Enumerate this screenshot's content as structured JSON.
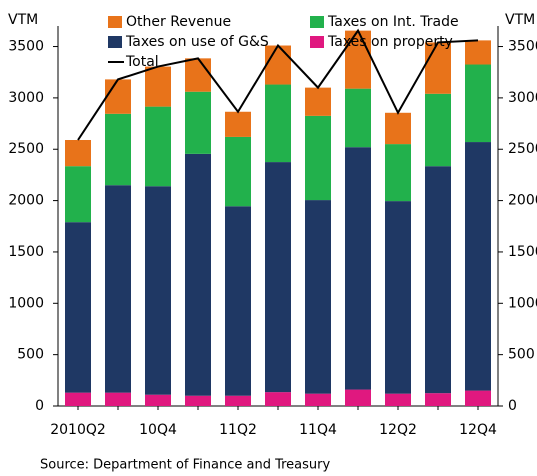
{
  "chart_data": {
    "type": "bar",
    "stacked": true,
    "y_label": "VTM",
    "y2_label": "VTM",
    "source": "Source: Department of Finance and Treasury",
    "categories": [
      "2010Q2",
      null,
      "10Q4",
      null,
      "11Q2",
      null,
      "11Q4",
      null,
      "12Q2",
      null,
      "12Q4"
    ],
    "series": [
      {
        "name": "Taxes on property",
        "color": "#e0187f",
        "values": [
          130,
          130,
          110,
          100,
          100,
          135,
          120,
          160,
          120,
          125,
          150
        ]
      },
      {
        "name": "Taxes on use of G&S",
        "color": "#1f3864",
        "values": [
          1660,
          2020,
          2030,
          2355,
          1845,
          2240,
          1885,
          2360,
          1875,
          2210,
          2420
        ]
      },
      {
        "name": "Taxes on Int. Trade",
        "color": "#22b14c",
        "values": [
          545,
          695,
          775,
          605,
          675,
          755,
          820,
          570,
          555,
          705,
          755
        ]
      },
      {
        "name": "Other Revenue",
        "color": "#e8731a",
        "values": [
          255,
          335,
          390,
          325,
          245,
          380,
          275,
          565,
          305,
          500,
          235
        ]
      },
      {
        "name": "Total",
        "type": "line",
        "color": "#000000",
        "values": [
          2590,
          3180,
          3305,
          3385,
          2865,
          3510,
          3100,
          3655,
          2855,
          3540,
          3560
        ]
      }
    ],
    "ylim": [
      0,
      3700
    ],
    "yticks": [
      0,
      500,
      1000,
      1500,
      2000,
      2500,
      3000,
      3500
    ],
    "y2lim": [
      0,
      3700
    ],
    "y2ticks": [
      0,
      500,
      1000,
      1500,
      2000,
      2500,
      3000,
      3500
    ]
  }
}
